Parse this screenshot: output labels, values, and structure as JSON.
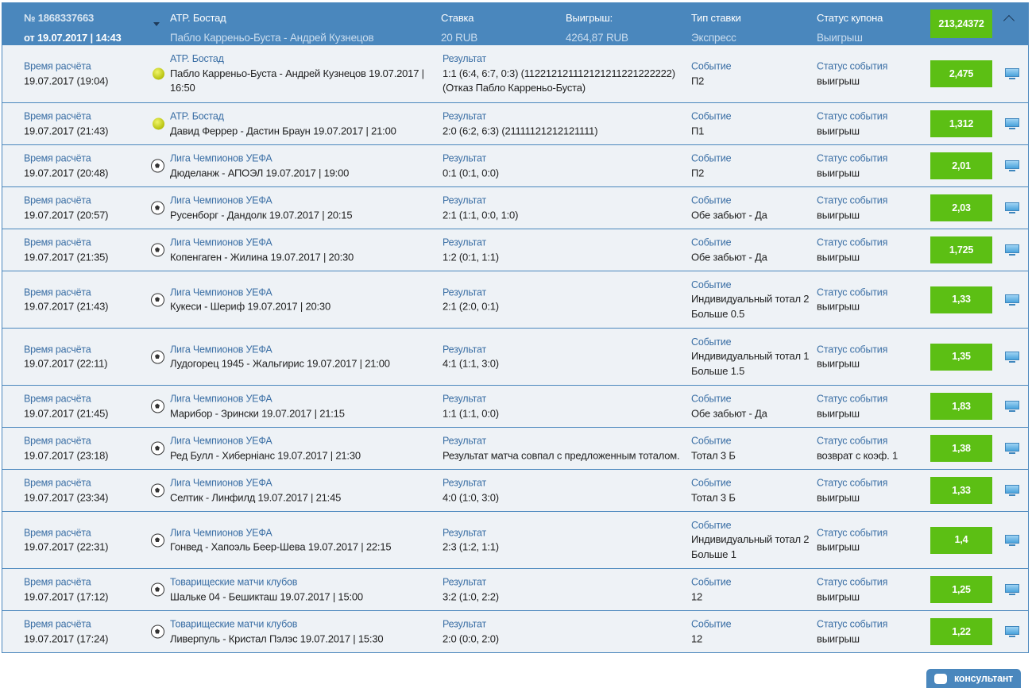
{
  "coupon": {
    "number": "№ 1868337663",
    "date": "от 19.07.2017 | 14:43",
    "tournament": "ATP. Бостад",
    "match": "Пабло Карреньо-Буста - Андрей Кузнецов",
    "stake_label": "Ставка",
    "stake": "20 RUB",
    "win_label": "Выигрыш:",
    "win": "4264,87 RUB",
    "type_label": "Тип ставки",
    "type": "Экспресс",
    "status_label": "Статус купона",
    "status": "Выигрыш",
    "total_odds": "213,24372"
  },
  "labels": {
    "calc_time": "Время расчёта",
    "result": "Результат",
    "event": "Событие",
    "event_status": "Статус события"
  },
  "colors": {
    "header": "#4a87bd",
    "odds": "#5cbf14",
    "row_bg": "#eef2f6"
  },
  "rows": [
    {
      "calc": "19.07.2017 (19:04)",
      "sport": "tennis",
      "league": "ATP. Бостад",
      "match": "Пабло Карреньо-Буста - Андрей Кузнецов 19.07.2017 | 16:50",
      "result": "1:1 (6:4, 6:7, 0:3) (112212121112121211221222222) (Отказ Пабло Карреньо-Буста)",
      "event": "П2",
      "status": "выигрыш",
      "odds": "2,475"
    },
    {
      "calc": "19.07.2017 (21:43)",
      "sport": "tennis",
      "league": "ATP. Бостад",
      "match": "Давид Феррер - Дастин Браун 19.07.2017 | 21:00",
      "result": "2:0 (6:2, 6:3) (21111121212121111)",
      "event": "П1",
      "status": "выигрыш",
      "odds": "1,312"
    },
    {
      "calc": "19.07.2017 (20:48)",
      "sport": "football",
      "league": "Лига Чемпионов УЕФА",
      "match": "Дюделанж - АПОЭЛ 19.07.2017 | 19:00",
      "result": "0:1 (0:1, 0:0)",
      "event": "П2",
      "status": "выигрыш",
      "odds": "2,01"
    },
    {
      "calc": "19.07.2017 (20:57)",
      "sport": "football",
      "league": "Лига Чемпионов УЕФА",
      "match": "Русенборг - Дандолк 19.07.2017 | 20:15",
      "result": "2:1 (1:1, 0:0, 1:0)",
      "event": "Обе забьют - Да",
      "status": "выигрыш",
      "odds": "2,03"
    },
    {
      "calc": "19.07.2017 (21:35)",
      "sport": "football",
      "league": "Лига Чемпионов УЕФА",
      "match": "Копенгаген - Жилина 19.07.2017 | 20:30",
      "result": "1:2 (0:1, 1:1)",
      "event": "Обе забьют - Да",
      "status": "выигрыш",
      "odds": "1,725"
    },
    {
      "calc": "19.07.2017 (21:43)",
      "sport": "football",
      "league": "Лига Чемпионов УЕФА",
      "match": "Кукеси - Шериф 19.07.2017 | 20:30",
      "result": "2:1 (2:0, 0:1)",
      "event": "Индивидуальный тотал 2 Больше 0.5",
      "status": "выигрыш",
      "odds": "1,33"
    },
    {
      "calc": "19.07.2017 (22:11)",
      "sport": "football",
      "league": "Лига Чемпионов УЕФА",
      "match": "Лудогорец 1945 - Жальгирис 19.07.2017 | 21:00",
      "result": "4:1 (1:1, 3:0)",
      "event": "Индивидуальный тотал 1 Больше 1.5",
      "status": "выигрыш",
      "odds": "1,35"
    },
    {
      "calc": "19.07.2017 (21:45)",
      "sport": "football",
      "league": "Лига Чемпионов УЕФА",
      "match": "Марибор - Зрински 19.07.2017 | 21:15",
      "result": "1:1 (1:1, 0:0)",
      "event": "Обе забьют - Да",
      "status": "выигрыш",
      "odds": "1,83"
    },
    {
      "calc": "19.07.2017 (23:18)",
      "sport": "football",
      "league": "Лига Чемпионов УЕФА",
      "match": "Ред Булл - Хиберніанс 19.07.2017 | 21:30",
      "result": "Результат матча совпал с предложенным тоталом.",
      "event": "Тотал 3 Б",
      "status": "возврат с коэф. 1",
      "odds": "1,38"
    },
    {
      "calc": "19.07.2017 (23:34)",
      "sport": "football",
      "league": "Лига Чемпионов УЕФА",
      "match": "Селтик - Линфилд 19.07.2017 | 21:45",
      "result": "4:0 (1:0, 3:0)",
      "event": "Тотал 3 Б",
      "status": "выигрыш",
      "odds": "1,33"
    },
    {
      "calc": "19.07.2017 (22:31)",
      "sport": "football",
      "league": "Лига Чемпионов УЕФА",
      "match": "Гонвед - Хапоэль Беер-Шева 19.07.2017 | 22:15",
      "result": "2:3 (1:2, 1:1)",
      "event": "Индивидуальный тотал 2 Больше 1",
      "status": "выигрыш",
      "odds": "1,4"
    },
    {
      "calc": "19.07.2017 (17:12)",
      "sport": "football",
      "league": "Товарищеские матчи клубов",
      "match": "Шальке 04 - Бешикташ 19.07.2017 | 15:00",
      "result": "3:2 (1:0, 2:2)",
      "event": "12",
      "status": "выигрыш",
      "odds": "1,25"
    },
    {
      "calc": "19.07.2017 (17:24)",
      "sport": "football",
      "league": "Товарищеские матчи клубов",
      "match": "Ливерпуль - Кристал Пэлэс 19.07.2017 | 15:30",
      "result": "2:0 (0:0, 2:0)",
      "event": "12",
      "status": "выигрыш",
      "odds": "1,22"
    }
  ],
  "consultant": "консультант"
}
